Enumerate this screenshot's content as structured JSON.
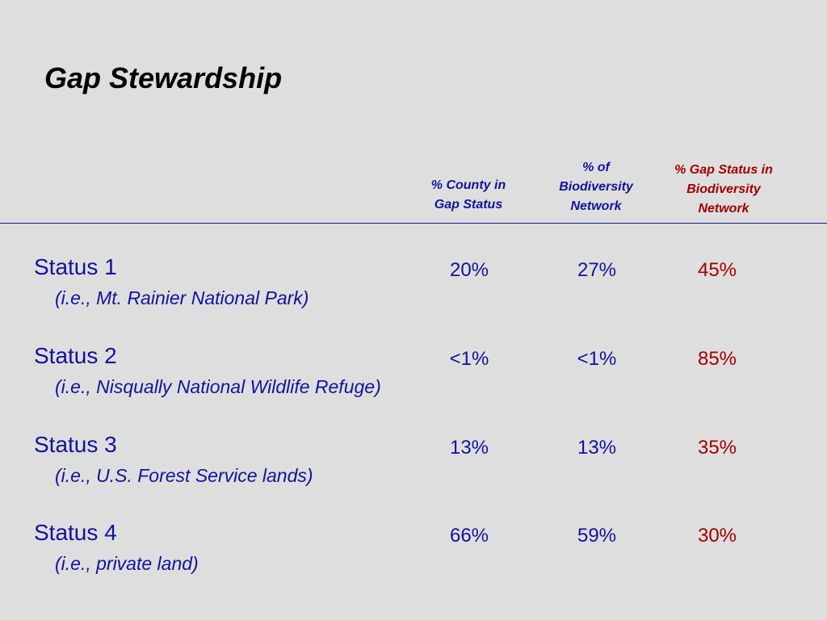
{
  "title": "Gap Stewardship",
  "colors": {
    "background": "#dedede",
    "blue_text": "#13139a",
    "red_text": "#a00000",
    "divider": "#1a1a9e"
  },
  "table": {
    "headers": [
      "% County in\nGap Status",
      "% of\nBiodiversity\nNetwork",
      "% Gap Status in\nBiodiversity\nNetwork"
    ],
    "rows": [
      {
        "label": "Status 1",
        "sublabel": "(i.e., Mt. Rainier National Park)",
        "county": "20%",
        "biodiversity": "27%",
        "gap_in_biodiversity": "45%"
      },
      {
        "label": "Status 2",
        "sublabel": "(i.e., Nisqually National Wildlife Refuge)",
        "county": "<1%",
        "biodiversity": "<1%",
        "gap_in_biodiversity": "85%"
      },
      {
        "label": "Status 3",
        "sublabel": "(i.e., U.S. Forest Service lands)",
        "county": "13%",
        "biodiversity": "13%",
        "gap_in_biodiversity": "35%"
      },
      {
        "label": "Status 4",
        "sublabel": "(i.e., private land)",
        "county": "66%",
        "biodiversity": "59%",
        "gap_in_biodiversity": "30%"
      }
    ]
  }
}
